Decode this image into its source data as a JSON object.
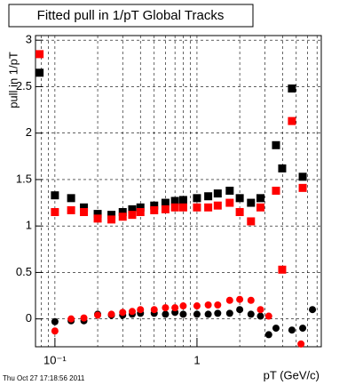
{
  "chart_data": {
    "type": "scatter",
    "title": "Fitted pull in 1/pT  Global Tracks",
    "y_label": "pull in 1/pT",
    "x_label": "pT (GeV/c)",
    "timestamp": "Thu Oct 27 17:18:56 2011",
    "log_x": true,
    "grid": true,
    "xlim": [
      0.073,
      7.5
    ],
    "ylim": [
      -0.3,
      3.05
    ],
    "xticks": [
      {
        "value": 0.1,
        "label": "10⁻¹"
      },
      1
    ],
    "xgrid": [
      0.08,
      0.09,
      0.1,
      0.2,
      0.3,
      0.4,
      0.5,
      0.6,
      0.7,
      0.8,
      0.9,
      1,
      2,
      3,
      4,
      5,
      6,
      7
    ],
    "yticks": [
      0,
      0.5,
      1,
      1.5,
      2,
      2.5,
      3
    ],
    "series": [
      {
        "color": "#000000",
        "marker": "square",
        "x": [
          0.078,
          0.1,
          0.13,
          0.16,
          0.2,
          0.25,
          0.3,
          0.35,
          0.4,
          0.5,
          0.6,
          0.7,
          0.8,
          1.0,
          1.2,
          1.4,
          1.7,
          2.0,
          2.4,
          2.8,
          3.6,
          3.98,
          4.66,
          5.55
        ],
        "values": [
          2.65,
          1.33,
          1.3,
          1.2,
          1.13,
          1.12,
          1.15,
          1.18,
          1.2,
          1.22,
          1.25,
          1.27,
          1.28,
          1.3,
          1.32,
          1.35,
          1.38,
          1.3,
          1.25,
          1.3,
          1.87,
          1.62,
          2.48,
          1.53
        ]
      },
      {
        "color": "#ff0000",
        "marker": "square",
        "x": [
          0.078,
          0.1,
          0.13,
          0.16,
          0.2,
          0.25,
          0.3,
          0.35,
          0.4,
          0.5,
          0.6,
          0.7,
          0.8,
          1.0,
          1.2,
          1.4,
          1.7,
          2.0,
          2.4,
          2.8,
          3.6,
          3.98,
          4.66,
          5.55
        ],
        "values": [
          2.85,
          1.15,
          1.17,
          1.15,
          1.08,
          1.07,
          1.1,
          1.12,
          1.15,
          1.17,
          1.18,
          1.2,
          1.2,
          1.2,
          1.2,
          1.22,
          1.25,
          1.15,
          1.05,
          1.2,
          1.38,
          0.53,
          2.13,
          1.41
        ]
      },
      {
        "color": "#000000",
        "marker": "circle",
        "x": [
          0.1,
          0.13,
          0.16,
          0.2,
          0.25,
          0.3,
          0.35,
          0.4,
          0.5,
          0.6,
          0.7,
          0.8,
          1.0,
          1.2,
          1.4,
          1.7,
          2.0,
          2.4,
          2.8,
          3.2,
          3.6,
          4.66,
          5.55,
          6.5
        ],
        "values": [
          -0.03,
          -0.02,
          -0.02,
          0.05,
          0.04,
          0.04,
          0.05,
          0.06,
          0.06,
          0.05,
          0.07,
          0.05,
          0.05,
          0.05,
          0.06,
          0.06,
          0.1,
          0.05,
          0.03,
          -0.17,
          -0.1,
          -0.12,
          -0.1,
          0.1
        ]
      },
      {
        "color": "#ff0000",
        "marker": "circle",
        "x": [
          0.1,
          0.13,
          0.16,
          0.2,
          0.25,
          0.3,
          0.35,
          0.4,
          0.5,
          0.6,
          0.7,
          0.8,
          1.0,
          1.2,
          1.4,
          1.7,
          2.0,
          2.4,
          2.8,
          3.2,
          5.4
        ],
        "values": [
          -0.13,
          0.0,
          0.01,
          0.04,
          0.05,
          0.07,
          0.08,
          0.1,
          0.1,
          0.12,
          0.12,
          0.14,
          0.14,
          0.15,
          0.15,
          0.2,
          0.21,
          0.2,
          0.1,
          0.03,
          -0.27
        ]
      }
    ]
  }
}
